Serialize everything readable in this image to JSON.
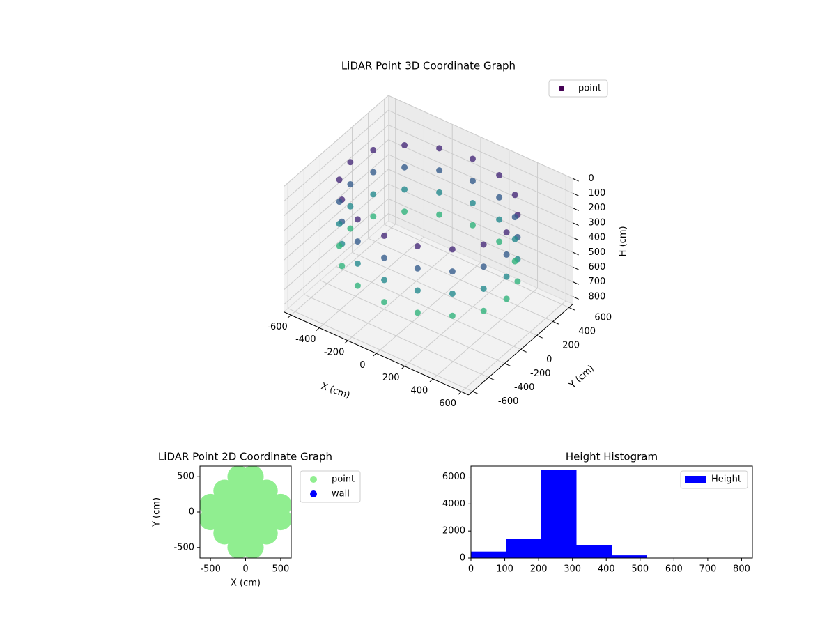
{
  "chart_data": [
    {
      "type": "scatter3d",
      "title": "LiDAR Point 3D Coordinate Graph",
      "xlabel": "X (cm)",
      "ylabel": "Y (cm)",
      "zlabel": "H (cm)",
      "xlim": [
        -650,
        650
      ],
      "ylim": [
        -650,
        650
      ],
      "zlim": [
        0,
        850
      ],
      "zinvert": true,
      "xticks": [
        -600,
        -400,
        -200,
        0,
        200,
        400,
        600
      ],
      "yticks": [
        -600,
        -400,
        -200,
        0,
        200,
        400,
        600
      ],
      "zticks": [
        0,
        100,
        200,
        300,
        400,
        500,
        600,
        700,
        800
      ],
      "colormap": "viridis",
      "legend": "upper right",
      "grid": true,
      "series": [
        {
          "name": "point",
          "color": "#440154",
          "x": [
            550,
            508,
            389,
            211,
            0,
            -211,
            -389,
            -508,
            -550,
            -508,
            -389,
            -211,
            0,
            211,
            389,
            508,
            550,
            508,
            389,
            211,
            0,
            -211,
            -389,
            -508,
            -550,
            -508,
            -389,
            -211,
            0,
            211,
            389,
            508,
            550,
            508,
            389,
            211,
            0,
            -211,
            -389,
            -508,
            -550,
            -508,
            -389,
            -211,
            0,
            211,
            389,
            508,
            550,
            508,
            389,
            211,
            0,
            -211,
            -389,
            -508,
            -550,
            -508,
            -389,
            -211,
            0,
            211,
            389,
            508
          ],
          "y": [
            0,
            211,
            389,
            508,
            550,
            508,
            389,
            211,
            0,
            -211,
            -389,
            -508,
            -550,
            -508,
            -389,
            -211,
            0,
            211,
            389,
            508,
            550,
            508,
            389,
            211,
            0,
            -211,
            -389,
            -508,
            -550,
            -508,
            -389,
            -211,
            0,
            211,
            389,
            508,
            550,
            508,
            389,
            211,
            0,
            -211,
            -389,
            -508,
            -550,
            -508,
            -389,
            -211,
            0,
            211,
            389,
            508,
            550,
            508,
            389,
            211,
            0,
            -211,
            -389,
            -508,
            -550,
            -508,
            -389,
            -211
          ],
          "z": [
            100,
            100,
            100,
            100,
            100,
            100,
            100,
            100,
            100,
            100,
            100,
            100,
            100,
            100,
            100,
            100,
            250,
            250,
            250,
            250,
            250,
            250,
            250,
            250,
            250,
            250,
            250,
            250,
            250,
            250,
            250,
            250,
            400,
            400,
            400,
            400,
            400,
            400,
            400,
            400,
            400,
            400,
            400,
            400,
            400,
            400,
            400,
            400,
            550,
            550,
            550,
            550,
            550,
            550,
            550,
            550,
            550,
            550,
            550,
            550,
            550,
            550,
            550,
            550
          ]
        }
      ]
    },
    {
      "type": "scatter",
      "title": "LiDAR Point 2D Coordinate Graph",
      "xlabel": "X (cm)",
      "ylabel": "Y (cm)",
      "xlim": [
        -650,
        650
      ],
      "ylim": [
        -650,
        650
      ],
      "xticks": [
        -500,
        0,
        500
      ],
      "yticks": [
        -500,
        0,
        500
      ],
      "legend": "outside right",
      "series": [
        {
          "name": "point",
          "color": "#90ee90",
          "x": [
            -100,
            -100,
            100,
            100,
            -100,
            -100,
            100,
            100,
            -300,
            -300,
            300,
            300,
            -300,
            -300,
            300,
            300,
            -100,
            -100,
            100,
            100,
            -500,
            -500,
            500,
            500
          ],
          "y": [
            -100,
            100,
            -100,
            100,
            -300,
            300,
            -300,
            300,
            -100,
            100,
            -100,
            100,
            -300,
            300,
            -300,
            300,
            -500,
            500,
            -500,
            500,
            -100,
            100,
            -100,
            100
          ]
        },
        {
          "name": "wall",
          "color": "#0000ff",
          "x": [],
          "y": []
        }
      ]
    },
    {
      "type": "histogram",
      "title": "Height Histogram",
      "bins": [
        0,
        104,
        208,
        312,
        416,
        520,
        624,
        728,
        832
      ],
      "series": [
        {
          "name": "Height",
          "color": "#0000ff",
          "values": [
            480,
            1430,
            6500,
            970,
            200,
            10,
            5,
            5
          ]
        }
      ],
      "xlim": [
        0,
        832
      ],
      "ylim": [
        0,
        6800
      ],
      "xticks": [
        0,
        100,
        200,
        300,
        400,
        500,
        600,
        700,
        800
      ],
      "yticks": [
        0,
        2000,
        4000,
        6000
      ],
      "legend": "upper right"
    }
  ]
}
